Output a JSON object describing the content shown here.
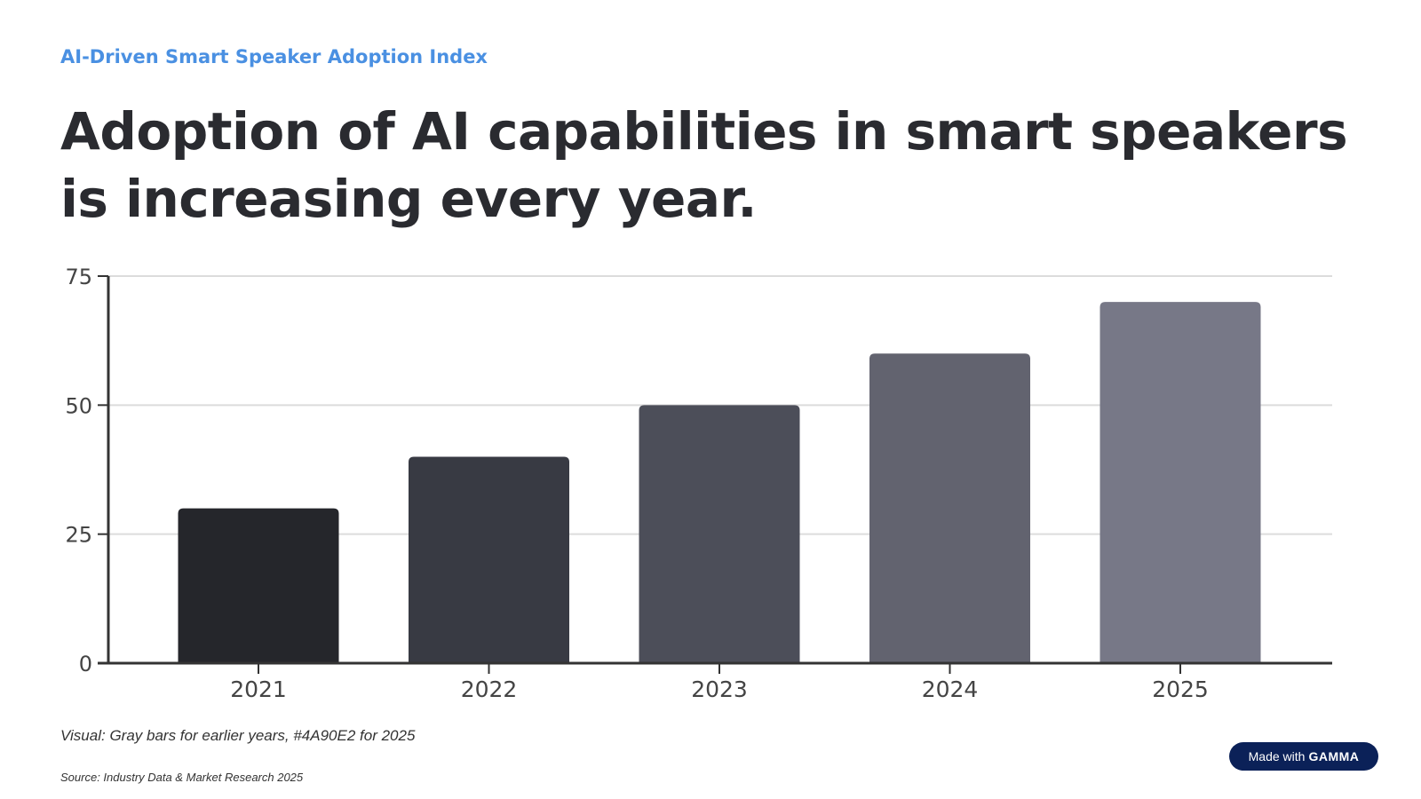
{
  "eyebrow": "AI-Driven Smart Speaker Adoption Index",
  "headline": "Adoption of AI capabilities in smart speakers is increasing every year.",
  "note": "Visual: Gray bars for earlier years, #4A90E2 for 2025",
  "source": "Source: Industry Data & Market Research 2025",
  "badge": {
    "prefix": "Made with",
    "brand": "GAMMA"
  },
  "colors": {
    "accent": "#4A90E2",
    "badge": "#0b2158"
  },
  "chart_data": {
    "type": "bar",
    "categories": [
      "2021",
      "2022",
      "2023",
      "2024",
      "2025"
    ],
    "values": [
      30,
      40,
      50,
      60,
      70
    ],
    "colors": [
      "#25262b",
      "#383a43",
      "#4c4e59",
      "#62636f",
      "#777887"
    ],
    "ylim": [
      0,
      75
    ],
    "yticks": [
      0,
      25,
      50,
      75
    ],
    "grid": true,
    "xlabel": "",
    "ylabel": ""
  }
}
